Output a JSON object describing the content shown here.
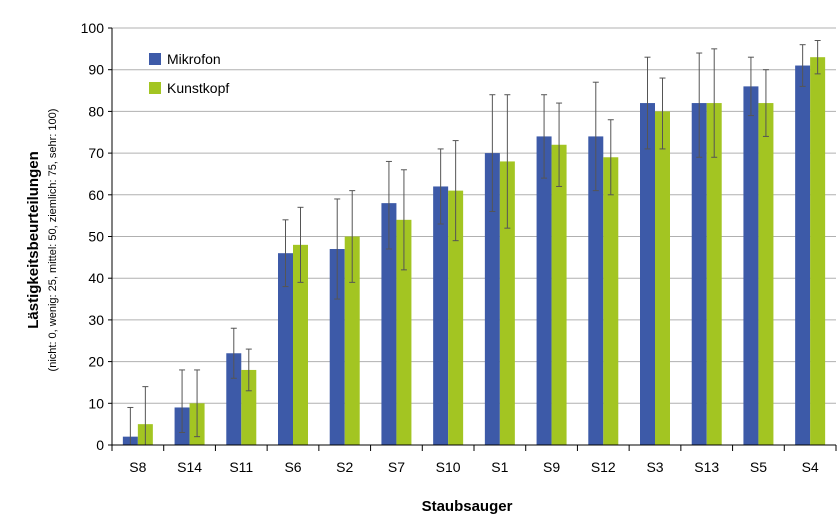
{
  "chart_data": {
    "type": "bar",
    "ylabel": "Lästigkeitsbeurteilungen",
    "ylabel_sub": "(nicht: 0, wenig: 25, mittel: 50, ziemlich: 75, sehr: 100)",
    "xlabel": "Staubsauger",
    "ylim": [
      0,
      100
    ],
    "yticks": [
      "0",
      "10",
      "20",
      "30",
      "40",
      "50",
      "60",
      "70",
      "80",
      "90",
      "100"
    ],
    "grid": true,
    "legend_position": "top-left",
    "categories": [
      "S8",
      "S14",
      "S11",
      "S6",
      "S2",
      "S7",
      "S10",
      "S1",
      "S9",
      "S12",
      "S3",
      "S13",
      "S5",
      "S4"
    ],
    "series": [
      {
        "name": "Mikrofon",
        "color": "#3d5aa8",
        "values": [
          2,
          9,
          22,
          46,
          47,
          58,
          62,
          70,
          74,
          74,
          82,
          82,
          86,
          91
        ],
        "err_low": [
          0,
          3,
          16,
          38,
          35,
          47,
          53,
          56,
          64,
          61,
          71,
          69,
          79,
          86
        ],
        "err_high": [
          9,
          18,
          28,
          54,
          59,
          68,
          71,
          84,
          84,
          87,
          93,
          94,
          93,
          96
        ]
      },
      {
        "name": "Kunstkopf",
        "color": "#a3c522",
        "values": [
          5,
          10,
          18,
          48,
          50,
          54,
          61,
          68,
          72,
          69,
          80,
          82,
          82,
          93
        ],
        "err_low": [
          0,
          2,
          13,
          39,
          39,
          42,
          49,
          52,
          62,
          60,
          71,
          69,
          74,
          89
        ],
        "err_high": [
          14,
          18,
          23,
          57,
          61,
          66,
          73,
          84,
          82,
          78,
          88,
          95,
          90,
          97
        ]
      }
    ]
  }
}
